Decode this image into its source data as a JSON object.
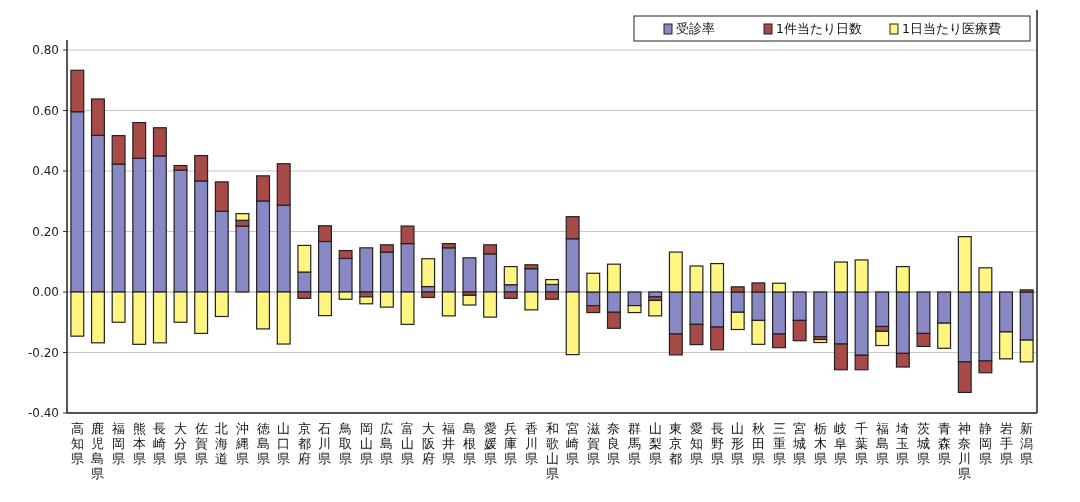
{
  "chart_data": {
    "type": "bar",
    "stacked": true,
    "grid": "y",
    "legend": "top right",
    "categories": [
      "高知県",
      "鹿児島県",
      "福岡県",
      "熊本県",
      "長崎県",
      "大分県",
      "佐賀県",
      "北海道",
      "沖縄県",
      "徳島県",
      "山口県",
      "京都府",
      "石川県",
      "鳥取県",
      "岡山県",
      "広島県",
      "富山県",
      "大阪府",
      "福井県",
      "島根県",
      "愛媛県",
      "兵庫県",
      "香川県",
      "和歌山県",
      "宮崎県",
      "滋賀県",
      "奈良県",
      "群馬県",
      "山梨県",
      "東京都",
      "愛知県",
      "長野県",
      "山形県",
      "秋田県",
      "三重県",
      "宮城県",
      "栃木県",
      "岐阜県",
      "千葉県",
      "福島県",
      "埼玉県",
      "茨城県",
      "青森県",
      "神奈川県",
      "静岡県",
      "岩手県",
      "新潟県"
    ],
    "ylim": [
      -0.4,
      0.8
    ],
    "yticks": [
      {
        "value": -0.4,
        "label": "-0.40"
      },
      {
        "value": -0.2,
        "label": "-0.20"
      },
      {
        "value": 0,
        "label": "0.00"
      },
      {
        "value": 0.2,
        "label": "0.20"
      },
      {
        "value": 0.4,
        "label": "0.40"
      },
      {
        "value": 0.6,
        "label": "0.60"
      },
      {
        "value": 0.8,
        "label": "0.80"
      }
    ],
    "series": [
      {
        "name": "受診率",
        "color": "#8888c4",
        "values": [
          0.596,
          0.518,
          0.423,
          0.442,
          0.45,
          0.403,
          0.367,
          0.267,
          0.218,
          0.301,
          0.287,
          0.066,
          0.167,
          0.111,
          0.146,
          0.132,
          0.16,
          0.018,
          0.146,
          0.113,
          0.126,
          0.024,
          0.077,
          0.025,
          0.176,
          -0.045,
          -0.067,
          -0.045,
          -0.016,
          -0.139,
          -0.107,
          -0.116,
          -0.067,
          -0.094,
          -0.139,
          -0.094,
          -0.148,
          -0.172,
          -0.209,
          -0.114,
          -0.203,
          -0.137,
          -0.103,
          -0.231,
          -0.228,
          -0.132,
          -0.159
        ]
      },
      {
        "name": "1件当たり日数",
        "color": "#a84a48",
        "values": [
          0.137,
          0.12,
          0.094,
          0.118,
          0.093,
          0.015,
          0.084,
          0.097,
          0.019,
          0.083,
          0.137,
          -0.021,
          0.052,
          0.026,
          -0.016,
          0.024,
          0.058,
          -0.018,
          0.014,
          -0.011,
          0.03,
          -0.021,
          0.013,
          -0.024,
          0.073,
          -0.023,
          -0.053,
          null,
          -0.012,
          -0.069,
          -0.067,
          -0.075,
          0.017,
          0.03,
          -0.045,
          -0.067,
          -0.009,
          -0.085,
          -0.048,
          -0.016,
          -0.045,
          -0.043,
          0,
          -0.101,
          -0.039,
          0,
          0.007
        ]
      },
      {
        "name": "1日当たり医療費",
        "color": "#fff580",
        "values": [
          -0.146,
          -0.168,
          -0.1,
          -0.173,
          -0.168,
          -0.1,
          -0.137,
          -0.081,
          0.022,
          -0.122,
          -0.172,
          0.088,
          -0.078,
          -0.024,
          -0.023,
          -0.05,
          -0.107,
          0.092,
          -0.079,
          -0.032,
          -0.083,
          0.06,
          -0.059,
          0.016,
          -0.207,
          0.062,
          0.092,
          -0.023,
          -0.051,
          0.132,
          0.086,
          0.094,
          -0.057,
          -0.079,
          0.029,
          0,
          -0.01,
          0.099,
          0.106,
          -0.047,
          0.084,
          0,
          -0.083,
          0.183,
          0.08,
          -0.089,
          -0.072
        ]
      }
    ]
  }
}
